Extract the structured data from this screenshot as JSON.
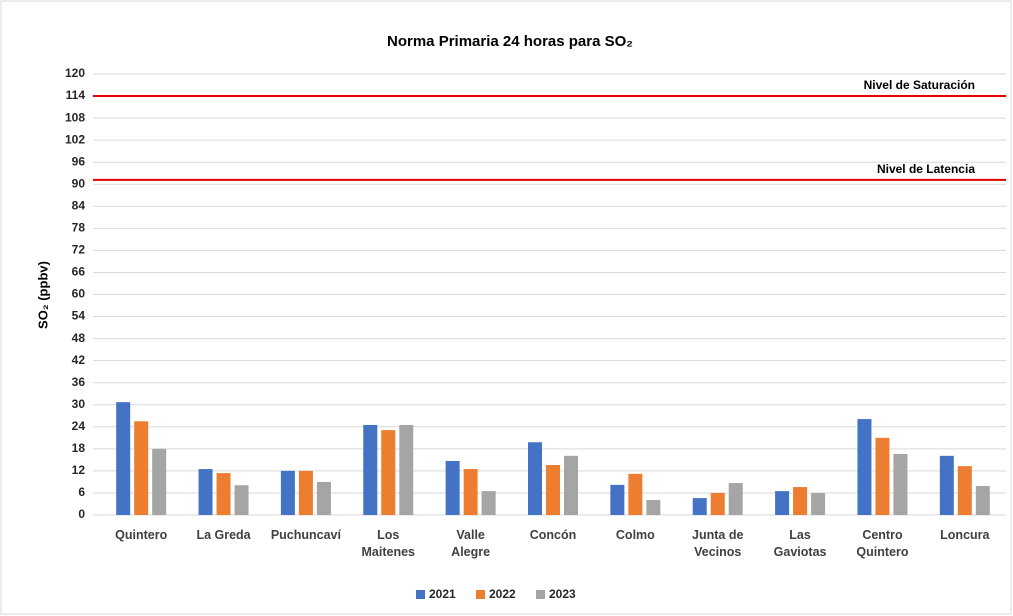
{
  "chart_data": {
    "type": "bar",
    "title": "Norma Primaria 24 horas para SO₂",
    "y_label": "SO₂ (ppbv)",
    "categories": [
      "Quintero",
      "La Greda",
      "Puchuncaví",
      "Los\nMaitenes",
      "Valle\nAlegre",
      "Concón",
      "Colmo",
      "Junta de\nVecinos",
      "Las\nGaviotas",
      "Centro\nQuintero",
      "Loncura"
    ],
    "series": [
      {
        "name": "2021",
        "color": "#4472c4",
        "values": [
          30.7,
          12.5,
          12,
          24.5,
          14.7,
          19.8,
          8.2,
          4.6,
          6.5,
          26.1,
          16.1
        ]
      },
      {
        "name": "2022",
        "color": "#ed7d31",
        "values": [
          25.5,
          11.4,
          12,
          23.1,
          12.5,
          13.6,
          11.2,
          6,
          7.6,
          21,
          13.3
        ]
      },
      {
        "name": "2023",
        "color": "#a5a5a5",
        "values": [
          18,
          8.1,
          9,
          24.5,
          6.5,
          16.1,
          4.1,
          8.7,
          6,
          16.6,
          7.9
        ]
      }
    ],
    "reference_lines": [
      {
        "label": "Nivel de Saturación",
        "value": 114,
        "color": "#e00000"
      },
      {
        "label": "Nivel de Latencia",
        "value": 91.2,
        "color": "#e00000"
      }
    ],
    "ylim": [
      0,
      120
    ],
    "yticks": [
      0,
      6,
      12,
      18,
      24,
      30,
      36,
      42,
      48,
      54,
      60,
      66,
      72,
      78,
      84,
      90,
      96,
      102,
      108,
      114,
      120
    ],
    "grid": true,
    "legend": "bottom"
  }
}
